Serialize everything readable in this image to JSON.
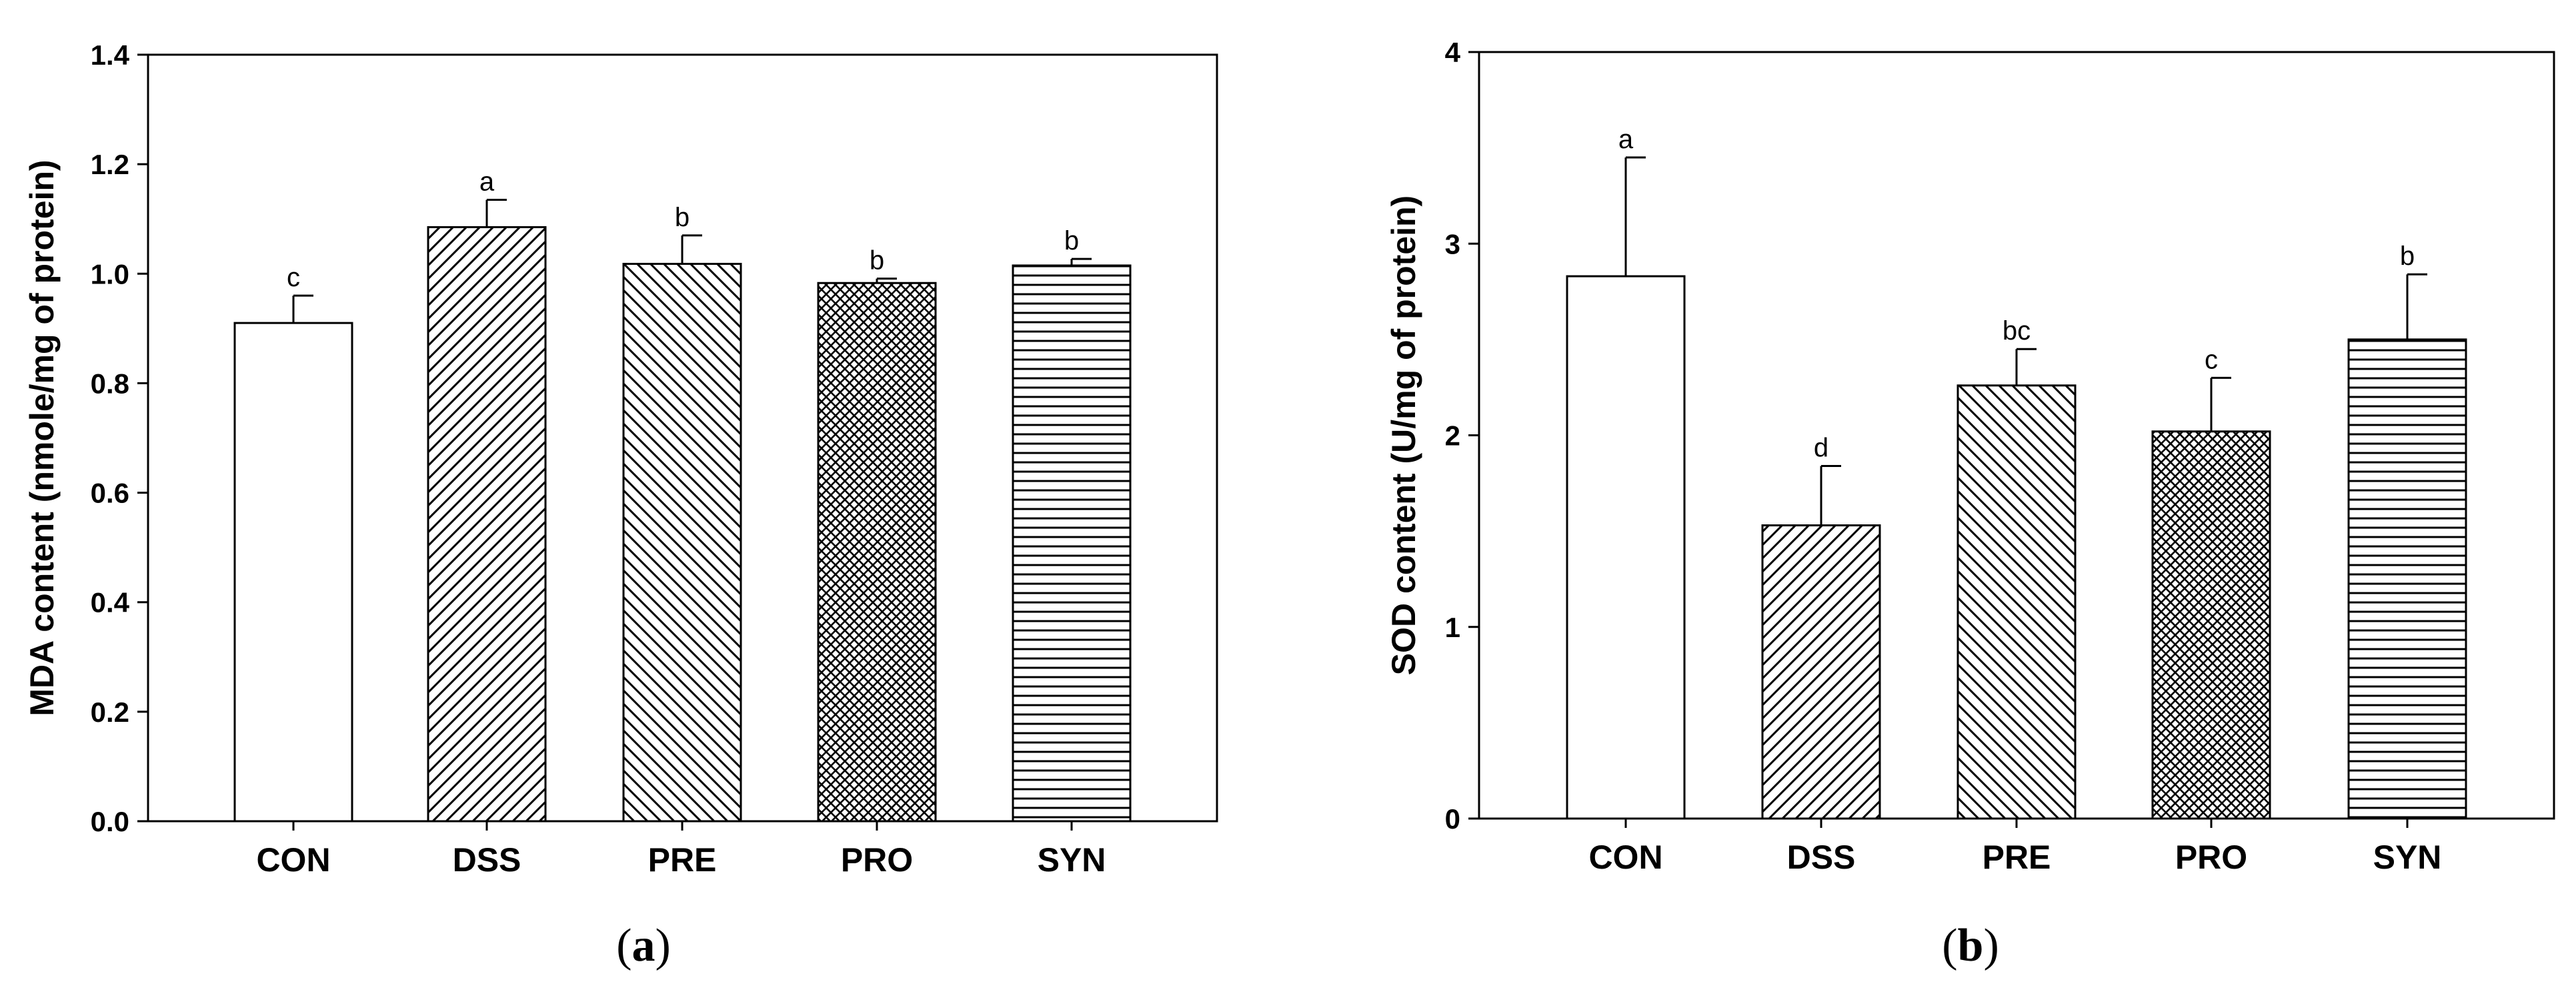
{
  "chart_data": [
    {
      "type": "bar",
      "panel_label": "a",
      "xlabel": "",
      "ylabel": "MDA content (nmole/mg of protein)",
      "ylim": [
        0,
        1.4
      ],
      "yticks": [
        "0.0",
        "0.2",
        "0.4",
        "0.6",
        "0.8",
        "1.0",
        "1.2",
        "1.4"
      ],
      "categories": [
        "CON",
        "DSS",
        "PRE",
        "PRO",
        "SYN"
      ],
      "values": [
        0.91,
        1.085,
        1.018,
        0.983,
        1.015
      ],
      "errors": [
        0.05,
        0.05,
        0.052,
        0.008,
        0.012
      ],
      "significance": [
        "c",
        "a",
        "b",
        "b",
        "b"
      ],
      "patterns": [
        "none",
        "diag-fwd",
        "diag-back",
        "crosshatch",
        "horizontal"
      ]
    },
    {
      "type": "bar",
      "panel_label": "b",
      "xlabel": "",
      "ylabel": "SOD content (U/mg of protein)",
      "ylim": [
        0,
        4
      ],
      "yticks": [
        "0",
        "1",
        "2",
        "3",
        "4"
      ],
      "categories": [
        "CON",
        "DSS",
        "PRE",
        "PRO",
        "SYN"
      ],
      "values": [
        2.83,
        1.53,
        2.26,
        2.02,
        2.5
      ],
      "errors": [
        0.62,
        0.31,
        0.19,
        0.28,
        0.34
      ],
      "significance": [
        "a",
        "d",
        "bc",
        "c",
        "b"
      ],
      "patterns": [
        "none",
        "diag-fwd",
        "diag-back",
        "crosshatch",
        "horizontal"
      ]
    }
  ]
}
